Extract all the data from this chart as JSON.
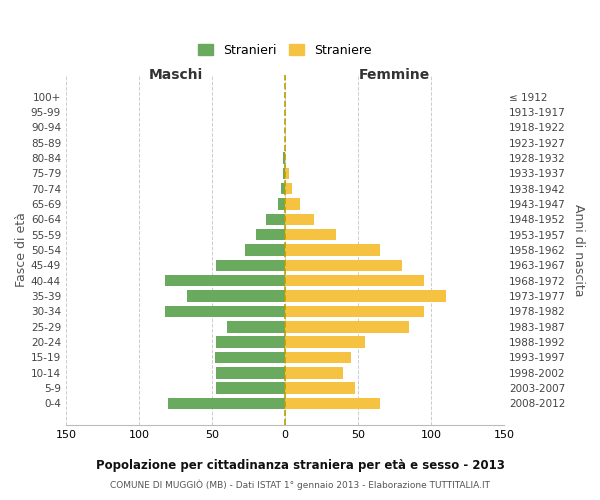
{
  "age_groups": [
    "0-4",
    "5-9",
    "10-14",
    "15-19",
    "20-24",
    "25-29",
    "30-34",
    "35-39",
    "40-44",
    "45-49",
    "50-54",
    "55-59",
    "60-64",
    "65-69",
    "70-74",
    "75-79",
    "80-84",
    "85-89",
    "90-94",
    "95-99",
    "100+"
  ],
  "birth_years": [
    "2008-2012",
    "2003-2007",
    "1998-2002",
    "1993-1997",
    "1988-1992",
    "1983-1987",
    "1978-1982",
    "1973-1977",
    "1968-1972",
    "1963-1967",
    "1958-1962",
    "1953-1957",
    "1948-1952",
    "1943-1947",
    "1938-1942",
    "1933-1937",
    "1928-1932",
    "1923-1927",
    "1918-1922",
    "1913-1917",
    "≤ 1912"
  ],
  "maschi": [
    80,
    47,
    47,
    48,
    47,
    40,
    82,
    67,
    82,
    47,
    27,
    20,
    13,
    5,
    3,
    1,
    1,
    0,
    0,
    0,
    0
  ],
  "femmine": [
    65,
    48,
    40,
    45,
    55,
    85,
    95,
    110,
    95,
    80,
    65,
    35,
    20,
    10,
    5,
    3,
    0,
    0,
    0,
    0,
    0
  ],
  "maschi_color": "#6aaa5f",
  "femmine_color": "#f5c242",
  "center_line_color": "#b8a000",
  "background_color": "#ffffff",
  "grid_color": "#cccccc",
  "title": "Popolazione per cittadinanza straniera per età e sesso - 2013",
  "subtitle": "COMUNE DI MUGGIÒ (MB) - Dati ISTAT 1° gennaio 2013 - Elaborazione TUTTITALIA.IT",
  "xlabel_left": "Maschi",
  "xlabel_right": "Femmine",
  "ylabel_left": "Fasce di età",
  "ylabel_right": "Anni di nascita",
  "legend_stranieri": "Stranieri",
  "legend_straniere": "Straniere",
  "xlim": 150
}
